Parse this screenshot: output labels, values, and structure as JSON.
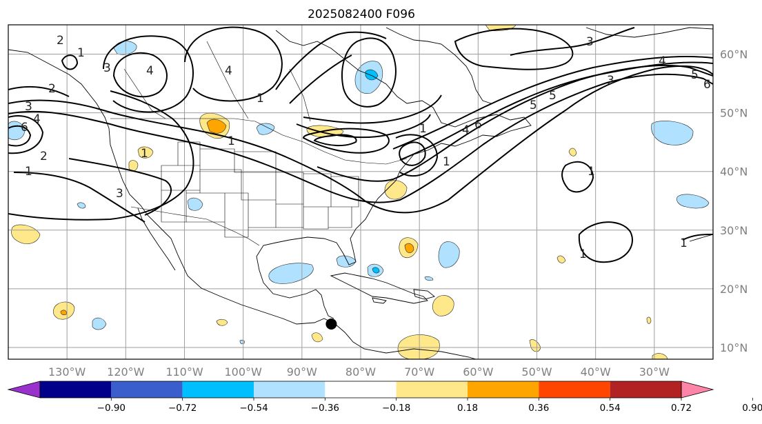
{
  "title": "2025082400 F096",
  "map": {
    "lon_range": [
      -140,
      -20
    ],
    "lat_range": [
      8,
      65
    ],
    "lon_ticks": [
      "130°W",
      "120°W",
      "110°W",
      "100°W",
      "90°W",
      "80°W",
      "70°W",
      "60°W",
      "50°W",
      "40°W",
      "30°W"
    ],
    "lat_ticks": [
      "10°N",
      "20°N",
      "30°N",
      "40°N",
      "50°N",
      "60°N"
    ],
    "grid": true
  },
  "colorbar": {
    "extend": "both",
    "levels": [
      "-0.90",
      "-0.72",
      "-0.54",
      "-0.36",
      "-0.18",
      "0.18",
      "0.36",
      "0.54",
      "0.72",
      "0.90"
    ],
    "colors": [
      "#9932CC",
      "#00008B",
      "#3A5FCD",
      "#00BFFF",
      "#B0E2FF",
      "#FFFFFF",
      "#FFE88A",
      "#FFA500",
      "#FF4500",
      "#B22222",
      "#FF85A8"
    ]
  },
  "contour_labels": [
    "2",
    "1",
    "3",
    "4",
    "3",
    "4",
    "6",
    "2",
    "1",
    "3",
    "1",
    "4",
    "2",
    "1",
    "5",
    "5",
    "4",
    "6",
    "3",
    "4",
    "5",
    "6",
    "3",
    "1",
    "1",
    "1",
    "1",
    "1",
    "1"
  ],
  "marker": {
    "lon": -85,
    "lat": 14,
    "color": "#000000"
  }
}
